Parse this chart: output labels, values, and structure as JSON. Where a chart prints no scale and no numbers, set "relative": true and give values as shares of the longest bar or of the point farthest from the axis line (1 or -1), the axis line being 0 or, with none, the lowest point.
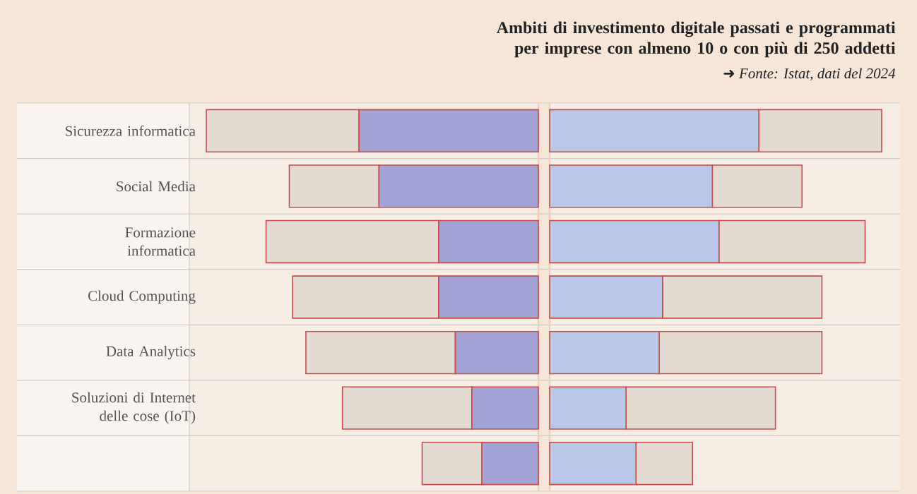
{
  "chart_data": [
    {
      "type": "bar",
      "orientation": "horizontal",
      "relative": true,
      "stacked": true,
      "tick_labels": "y",
      "categories": [
        "Sicurezza informatica",
        "Social Media",
        "Formazione informatica",
        "Cloud Computing",
        "Data Analytics",
        "Soluzioni di Internet delle cose (IoT)",
        null
      ],
      "series": [
        {
          "color": "#a3a3d6",
          "values": [
            -0.54,
            -0.48,
            -0.3,
            -0.3,
            -0.25,
            -0.2,
            -0.17
          ]
        },
        {
          "color": "#e3dbd2",
          "values": [
            -0.46,
            -0.27,
            -0.52,
            -0.44,
            -0.45,
            -0.39,
            -0.18
          ]
        }
      ]
    },
    {
      "type": "bar",
      "orientation": "horizontal",
      "relative": true,
      "stacked": true,
      "tick_labels": false,
      "title": "Ambiti di investimento digitale passati e programmati per imprese con almeno 10 o con più di 250 addetti",
      "annotations": [
        "➜ Fonte:  Istat, dati del 2024"
      ],
      "categories": [
        null,
        null,
        null,
        null,
        null,
        null,
        null
      ],
      "series": [
        {
          "color": "#b8c8e6",
          "values": [
            0.63,
            0.49,
            0.51,
            0.34,
            0.33,
            0.23,
            0.26
          ]
        },
        {
          "color": "#e3dbd2",
          "values": [
            0.37,
            0.27,
            0.44,
            0.48,
            0.49,
            0.45,
            0.17
          ]
        }
      ]
    }
  ]
}
